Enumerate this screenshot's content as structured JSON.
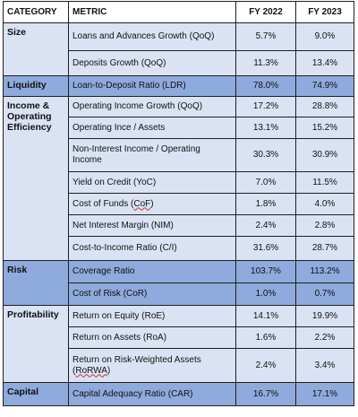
{
  "headers": {
    "category": "CATEGORY",
    "metric": "METRIC",
    "fy2022": "FY 2022",
    "fy2023": "FY 2023"
  },
  "rows": [
    {
      "category": "Size",
      "metric": "Loans and Advances Growth (QoQ)",
      "fy2022": "5.7%",
      "fy2023": "9.0%"
    },
    {
      "metric": "Deposits Growth (QoQ)",
      "fy2022": "11.3%",
      "fy2023": "13.4%"
    },
    {
      "category": "Liquidity",
      "metric": "Loan-to-Deposit Ratio (LDR)",
      "fy2022": "78.0%",
      "fy2023": "74.9%"
    },
    {
      "category": "Income & Operating Efficiency",
      "metric": "Operating Income Growth (QoQ)",
      "fy2022": "17.2%",
      "fy2023": "28.8%"
    },
    {
      "metric": "Operating Ince / Assets",
      "fy2022": "13.1%",
      "fy2023": "15.2%"
    },
    {
      "metric": "Non-Interest Income / Operating Income",
      "fy2022": "30.3%",
      "fy2023": "30.9%"
    },
    {
      "metric": "Yield on Credit (YoC)",
      "fy2022": "7.0%",
      "fy2023": "11.5%"
    },
    {
      "metric_prefix": "Cost of Funds (",
      "metric_flag": "CoF",
      "metric_suffix": ")",
      "fy2022": "1.8%",
      "fy2023": "4.0%"
    },
    {
      "metric": "Net Interest Margin (NIM)",
      "fy2022": "2.4%",
      "fy2023": "2.8%"
    },
    {
      "metric": "Cost-to-Income Ratio (C/I)",
      "fy2022": "31.6%",
      "fy2023": "28.7%"
    },
    {
      "category": "Risk",
      "metric": "Coverage Ratio",
      "fy2022": "103.7%",
      "fy2023": "113.2%"
    },
    {
      "metric": "Cost of Risk (CoR)",
      "fy2022": "1.0%",
      "fy2023": "0.7%"
    },
    {
      "category": "Profitability",
      "metric": "Return on Equity (RoE)",
      "fy2022": "14.1%",
      "fy2023": "19.9%"
    },
    {
      "metric": "Return on Assets (RoA)",
      "fy2022": "1.6%",
      "fy2023": "2.2%"
    },
    {
      "metric_prefix": "Return on Risk-Weighted Assets (",
      "metric_flag": "RoRWA",
      "metric_suffix": ")",
      "fy2022": "2.4%",
      "fy2023": "3.4%"
    },
    {
      "category": "Capital",
      "metric": "Capital Adequacy Ratio (CAR)",
      "fy2022": "16.7%",
      "fy2023": "17.1%"
    }
  ],
  "colors": {
    "category_band": "#8faadc",
    "row_fill": "#dae3f3",
    "header_fill": "#ffffff",
    "border": "#1f1f1f",
    "spellcheck_underline": "#d03030"
  }
}
